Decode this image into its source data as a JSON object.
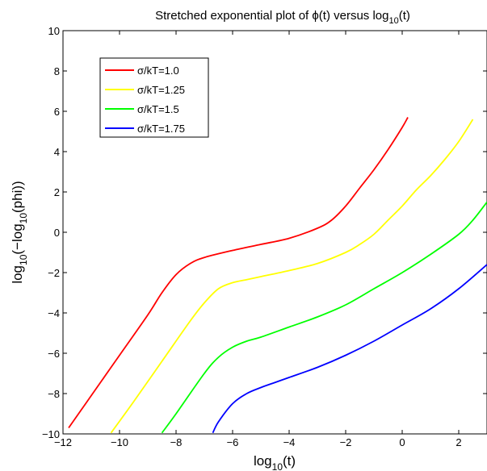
{
  "chart_data": {
    "type": "line",
    "title": "Stretched exponential plot of ϕ(t) versus log10(t)",
    "title_parts": {
      "before": "Stretched exponential plot of ",
      "phi": "ϕ",
      "middle": "(t) versus log",
      "sub": "10",
      "after": "(t)"
    },
    "xlabel_parts": {
      "main": "log",
      "sub": "10",
      "after": "(t)"
    },
    "ylabel_parts": {
      "main": "log",
      "sub": "10",
      "middle": "(−log",
      "sub2": "10",
      "after": "(phi))"
    },
    "xlim": [
      -12,
      3
    ],
    "ylim": [
      -10,
      10
    ],
    "xticks": [
      -12,
      -10,
      -8,
      -6,
      -4,
      -2,
      0,
      2
    ],
    "yticks": [
      -10,
      -8,
      -6,
      -4,
      -2,
      0,
      2,
      4,
      6,
      8,
      10
    ],
    "xtick_labels": [
      "−12",
      "−10",
      "−8",
      "−6",
      "−4",
      "−2",
      "0",
      "2"
    ],
    "ytick_labels": [
      "−10",
      "−8",
      "−6",
      "−4",
      "−2",
      "0",
      "2",
      "4",
      "6",
      "8",
      "10"
    ],
    "grid": false,
    "legend_position": "top-left",
    "series": [
      {
        "name": "σ/kT=1.0",
        "color": "#ff0000",
        "x": [
          -11.8,
          -11.0,
          -10.0,
          -9.0,
          -8.5,
          -8.0,
          -7.5,
          -7.0,
          -6.0,
          -5.0,
          -4.0,
          -3.0,
          -2.5,
          -2.0,
          -1.5,
          -1.0,
          -0.5,
          0.0,
          0.2
        ],
        "y": [
          -9.7,
          -8.1,
          -6.1,
          -4.1,
          -3.0,
          -2.1,
          -1.55,
          -1.25,
          -0.9,
          -0.6,
          -0.3,
          0.2,
          0.6,
          1.3,
          2.2,
          3.1,
          4.1,
          5.2,
          5.7
        ]
      },
      {
        "name": "σ/kT=1.25",
        "color": "#ffff00",
        "x": [
          -10.3,
          -9.5,
          -8.5,
          -7.5,
          -7.0,
          -6.5,
          -6.0,
          -5.5,
          -5.0,
          -4.0,
          -3.0,
          -2.0,
          -1.5,
          -1.0,
          -0.5,
          0.0,
          0.5,
          1.0,
          1.5,
          2.0,
          2.5
        ],
        "y": [
          -9.95,
          -8.4,
          -6.4,
          -4.4,
          -3.5,
          -2.8,
          -2.5,
          -2.35,
          -2.2,
          -1.9,
          -1.55,
          -1.0,
          -0.6,
          -0.1,
          0.6,
          1.3,
          2.1,
          2.8,
          3.6,
          4.5,
          5.6
        ]
      },
      {
        "name": "σ/kT=1.5",
        "color": "#00ff00",
        "x": [
          -8.5,
          -8.0,
          -7.0,
          -6.5,
          -6.0,
          -5.5,
          -5.0,
          -4.0,
          -3.0,
          -2.0,
          -1.0,
          0.0,
          1.0,
          2.0,
          2.5,
          3.0
        ],
        "y": [
          -9.95,
          -9.0,
          -7.0,
          -6.2,
          -5.7,
          -5.4,
          -5.2,
          -4.7,
          -4.2,
          -3.6,
          -2.8,
          -2.0,
          -1.1,
          -0.1,
          0.6,
          1.5
        ]
      },
      {
        "name": "σ/kT=1.75",
        "color": "#0000ff",
        "x": [
          -6.7,
          -6.5,
          -6.0,
          -5.5,
          -5.0,
          -4.5,
          -4.0,
          -3.0,
          -2.0,
          -1.0,
          0.0,
          1.0,
          2.0,
          3.0
        ],
        "y": [
          -9.95,
          -9.4,
          -8.5,
          -8.0,
          -7.7,
          -7.45,
          -7.2,
          -6.7,
          -6.1,
          -5.4,
          -4.6,
          -3.8,
          -2.8,
          -1.6
        ]
      }
    ]
  }
}
